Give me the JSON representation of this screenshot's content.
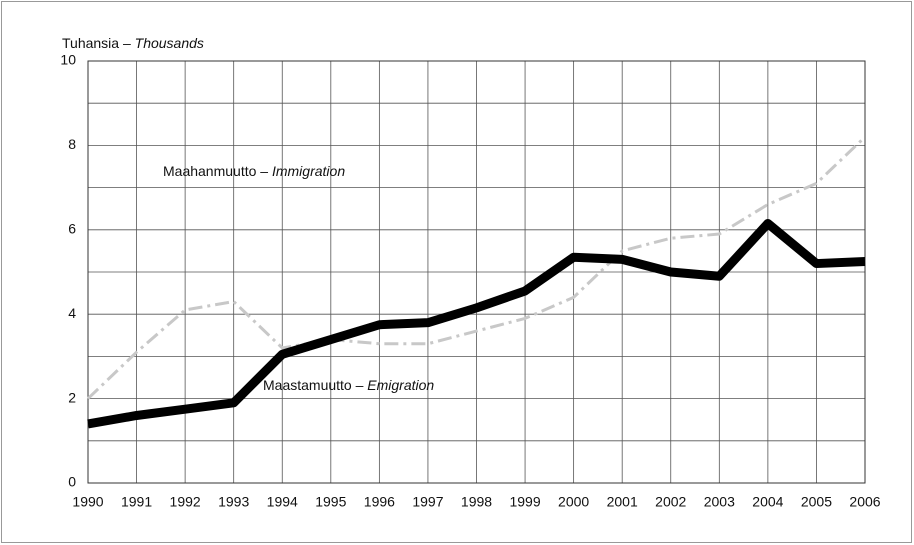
{
  "chart_data": {
    "type": "line",
    "y_label": {
      "fi": "Tuhansia –",
      "en": "Thousands"
    },
    "x": [
      1990,
      1991,
      1992,
      1993,
      1994,
      1995,
      1996,
      1997,
      1998,
      1999,
      2000,
      2001,
      2002,
      2003,
      2004,
      2005,
      2006
    ],
    "xlim": [
      1990,
      2006
    ],
    "ylim": [
      0,
      10
    ],
    "yticks": [
      0,
      2,
      4,
      6,
      8,
      10
    ],
    "minor_yticks": [
      1,
      3,
      5,
      7,
      9
    ],
    "grid": true,
    "series": [
      {
        "name_fi": "Maahanmuutto –",
        "name_en": "Immigration",
        "color": "#c8c8c8",
        "dashed": true,
        "values": [
          2.0,
          3.1,
          4.1,
          4.3,
          3.2,
          3.4,
          3.3,
          3.3,
          3.6,
          3.9,
          4.4,
          5.5,
          5.8,
          5.9,
          6.6,
          7.1,
          8.2
        ]
      },
      {
        "name_fi": "Maastamuutto –",
        "name_en": "Emigration",
        "color": "#000000",
        "dashed": false,
        "values": [
          1.4,
          1.6,
          1.75,
          1.9,
          3.05,
          3.4,
          3.75,
          3.8,
          4.15,
          4.55,
          5.35,
          5.3,
          5.0,
          4.9,
          6.15,
          5.2,
          5.25
        ]
      }
    ]
  }
}
